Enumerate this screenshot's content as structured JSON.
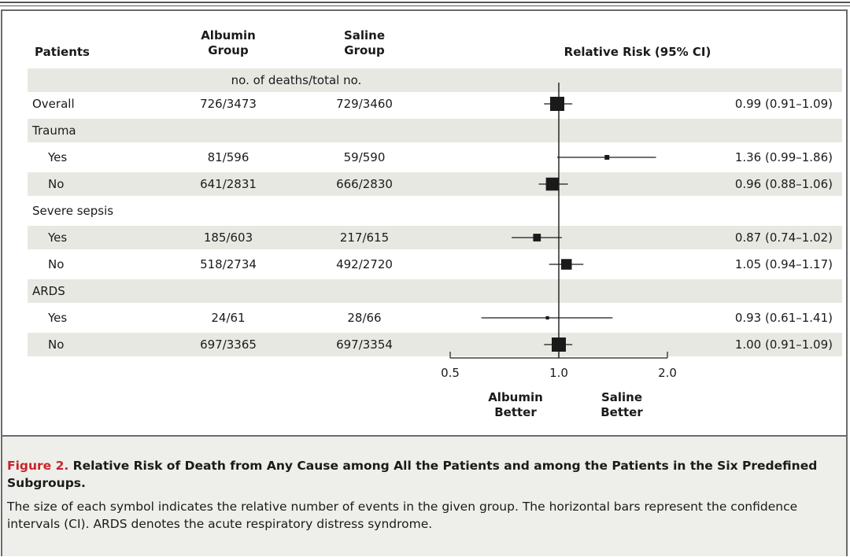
{
  "headers": {
    "patients": "Patients",
    "albumin": "Albumin Group",
    "saline": "Saline Group",
    "rr": "Relative Risk (95% CI)"
  },
  "subheader": "no. of deaths/total no.",
  "chart_data": {
    "type": "forest",
    "x_scale": "log",
    "xlim": [
      0.5,
      2.0
    ],
    "x_ticks": [
      "0.5",
      "1.0",
      "2.0"
    ],
    "reference_line": 1.0,
    "x_annotations": [
      "Albumin Better",
      "Saline Better"
    ],
    "rows": [
      {
        "label": "Overall",
        "indent": false,
        "albumin": "726/3473",
        "saline": "729/3460",
        "rr": 0.99,
        "lo": 0.91,
        "hi": 1.09,
        "rr_text": "0.99 (0.91–1.09)",
        "weight": 1.0
      },
      {
        "label": "Trauma",
        "indent": false,
        "header": true
      },
      {
        "label": "Yes",
        "indent": true,
        "albumin": "81/596",
        "saline": "59/590",
        "rr": 1.36,
        "lo": 0.99,
        "hi": 1.86,
        "rr_text": "1.36 (0.99–1.86)",
        "weight": 0.2
      },
      {
        "label": "No",
        "indent": true,
        "albumin": "641/2831",
        "saline": "666/2830",
        "rr": 0.96,
        "lo": 0.88,
        "hi": 1.06,
        "rr_text": "0.96 (0.88–1.06)",
        "weight": 0.9
      },
      {
        "label": "Severe sepsis",
        "indent": false,
        "header": true
      },
      {
        "label": "Yes",
        "indent": true,
        "albumin": "185/603",
        "saline": "217/615",
        "rr": 0.87,
        "lo": 0.74,
        "hi": 1.02,
        "rr_text": "0.87 (0.74–1.02)",
        "weight": 0.45
      },
      {
        "label": "No",
        "indent": true,
        "albumin": "518/2734",
        "saline": "492/2720",
        "rr": 1.05,
        "lo": 0.94,
        "hi": 1.17,
        "rr_text": "1.05 (0.94–1.17)",
        "weight": 0.7
      },
      {
        "label": "ARDS",
        "indent": false,
        "header": true
      },
      {
        "label": "Yes",
        "indent": true,
        "albumin": "24/61",
        "saline": "28/66",
        "rr": 0.93,
        "lo": 0.61,
        "hi": 1.41,
        "rr_text": "0.93 (0.61–1.41)",
        "weight": 0.08
      },
      {
        "label": "No",
        "indent": true,
        "albumin": "697/3365",
        "saline": "697/3354",
        "rr": 1.0,
        "lo": 0.91,
        "hi": 1.09,
        "rr_text": "1.00 (0.91–1.09)",
        "weight": 1.0
      }
    ]
  },
  "labels": {
    "albumin_better": "Albumin Better",
    "saline_better": "Saline Better"
  },
  "caption": {
    "figure_label": "Figure 2.",
    "title": "Relative Risk of Death from Any Cause among All the Patients and among the Patients in the Six Predefined Subgroups.",
    "body": "The size of each symbol indicates the relative number of events in the given group. The horizontal bars represent the confidence intervals (CI). ARDS denotes the acute respiratory distress syndrome."
  },
  "colors": {
    "figure_label": "#c8242b",
    "band": "#e8e8e3",
    "caption_bg": "#eeeeea"
  }
}
